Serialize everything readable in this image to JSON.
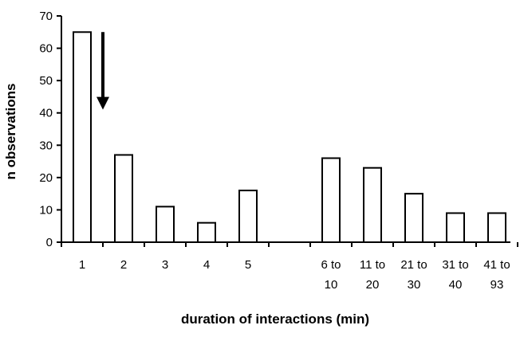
{
  "chart_data": {
    "type": "bar",
    "title": "",
    "xlabel": "duration of interactions (min)",
    "ylabel": "n observations",
    "ylim": [
      0,
      70
    ],
    "yticks": [
      0,
      10,
      20,
      30,
      40,
      50,
      60,
      70
    ],
    "grid": false,
    "legend": "none",
    "categories": [
      [
        "1"
      ],
      [
        "2"
      ],
      [
        "3"
      ],
      [
        "4"
      ],
      [
        "5"
      ],
      [
        ""
      ],
      [
        "6 to",
        "10"
      ],
      [
        "11 to",
        "20"
      ],
      [
        "21 to",
        "30"
      ],
      [
        "31 to",
        "40"
      ],
      [
        "41 to",
        "93"
      ]
    ],
    "values": [
      65,
      27,
      11,
      6,
      16,
      null,
      26,
      23,
      15,
      9,
      9
    ],
    "annotations": [
      {
        "type": "arrow",
        "direction": "down",
        "x_between": [
          "1",
          "2"
        ],
        "from_y": 65,
        "to_y": 41
      }
    ],
    "colors": {
      "bar_fill": "#ffffff",
      "bar_stroke": "#000000",
      "axis": "#000000"
    }
  }
}
